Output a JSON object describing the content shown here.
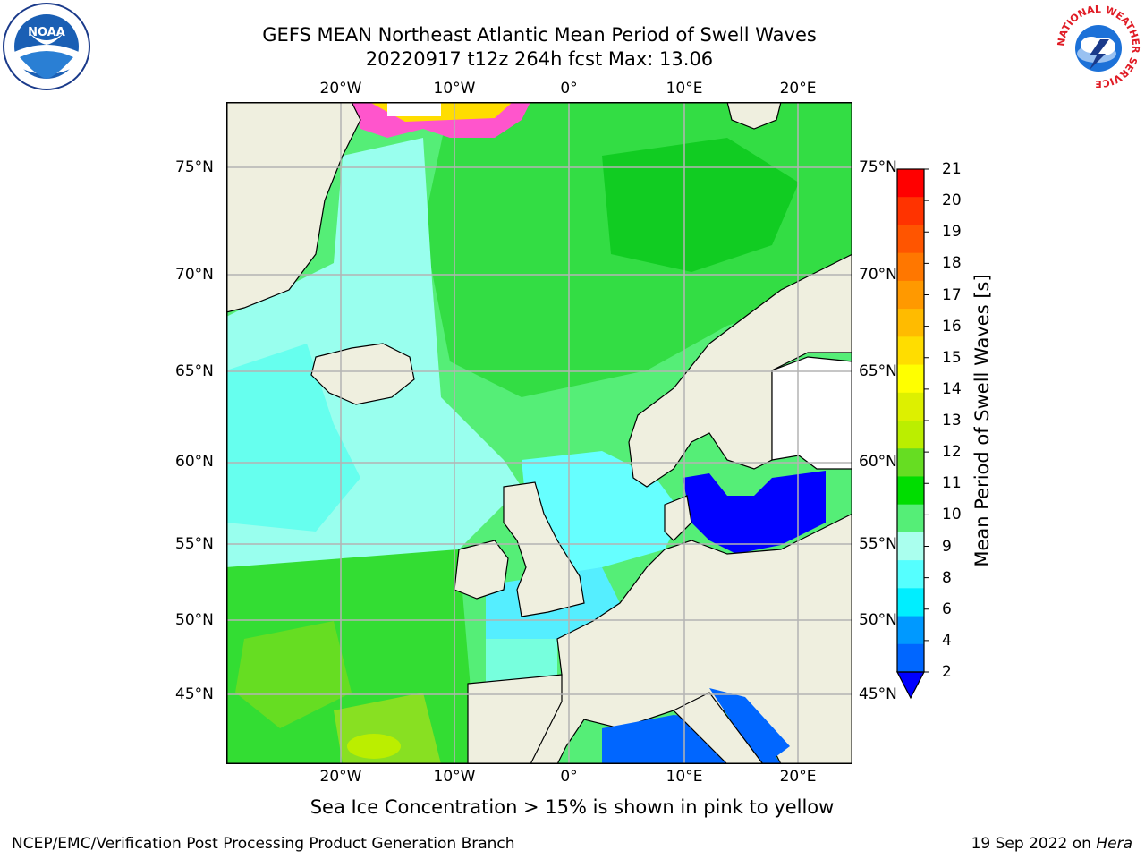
{
  "title": {
    "line1": "GEFS MEAN Northeast Atlantic Mean Period of Swell Waves",
    "line2": "20220917 t12z 264h fcst   Max: 13.06"
  },
  "map": {
    "lon_labels": [
      "20°W",
      "10°W",
      "0°",
      "10°E",
      "20°E"
    ],
    "lat_labels": [
      "75°N",
      "70°N",
      "65°N",
      "60°N",
      "55°N",
      "50°N",
      "45°N"
    ]
  },
  "colorbar": {
    "title": "Mean Period of Swell Waves [s]",
    "labels": [
      "21",
      "20",
      "19",
      "18",
      "17",
      "16",
      "15",
      "14",
      "13",
      "12",
      "11",
      "10",
      "9",
      "8",
      "6",
      "4",
      "2"
    ],
    "colors": [
      "#ff0000",
      "#ff3300",
      "#ff5500",
      "#ff7700",
      "#ff9900",
      "#ffbb00",
      "#ffdd00",
      "#ffff00",
      "#ddf000",
      "#bbee00",
      "#66dd22",
      "#00dd00",
      "#55ee77",
      "#aaffee",
      "#55ffff",
      "#00eeff",
      "#0099ff",
      "#0066ff"
    ],
    "extend_color": "#0000ff"
  },
  "colors": {
    "land": "#efefdf",
    "land_white": "#ffffff",
    "coast": "#000000",
    "grid": "#b4b4b4",
    "baltic": "#0000ff",
    "med": "#0066ff"
  },
  "footer": {
    "ice_note": "Sea Ice Concentration > 15% is shown in pink to yellow",
    "credit": "NCEP/EMC/Verification Post Processing Product Generation Branch",
    "date": "19 Sep 2022 on ",
    "host": "Hera"
  },
  "logos": {
    "noaa_text": "NOAA",
    "nws_text": "NATIONAL WEATHER SERVICE"
  }
}
